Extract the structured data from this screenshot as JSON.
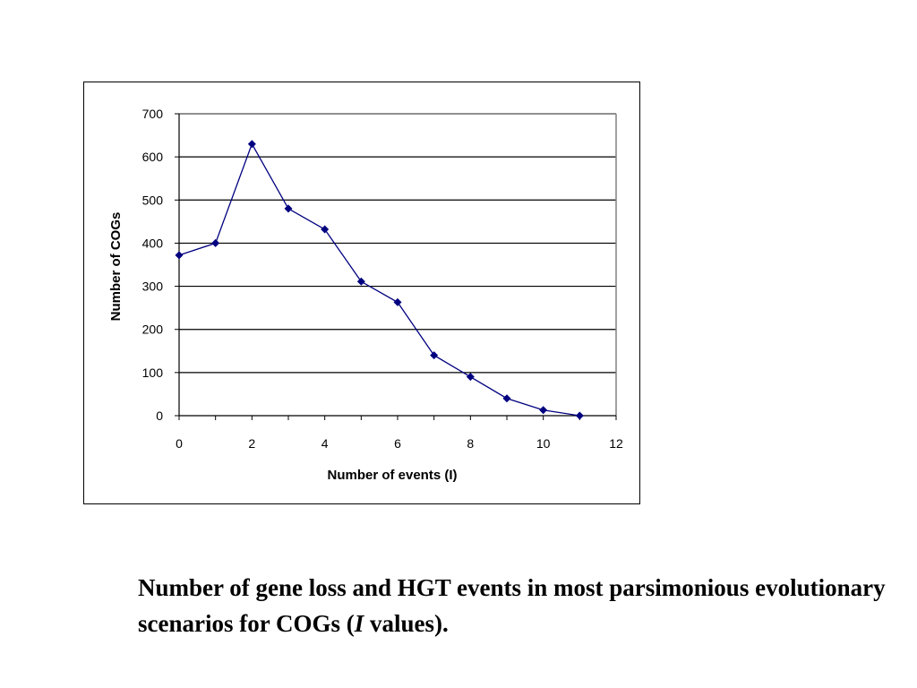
{
  "chart_data": {
    "type": "line",
    "title": "",
    "xlabel": "Number of events (I)",
    "ylabel": "Number of COGs",
    "xlim": [
      0,
      12
    ],
    "ylim": [
      0,
      700
    ],
    "xticks": [
      "0",
      "2",
      "4",
      "6",
      "8",
      "10",
      "12"
    ],
    "yticks": [
      "0",
      "100",
      "200",
      "300",
      "400",
      "500",
      "600",
      "700"
    ],
    "grid": true,
    "legend": "none",
    "series": [
      {
        "color": "#000080",
        "marker": "diamond",
        "x": [
          0,
          1,
          2,
          3,
          4,
          5,
          6,
          7,
          8,
          9,
          10,
          11
        ],
        "y": [
          372,
          400,
          630,
          480,
          432,
          311,
          263,
          140,
          90,
          40,
          13,
          0
        ]
      }
    ]
  },
  "caption": {
    "part1": "Number of gene loss and HGT events in most parsimonious evolutionary scenarios for COGs (",
    "italic": "I",
    "part2": " values)."
  }
}
